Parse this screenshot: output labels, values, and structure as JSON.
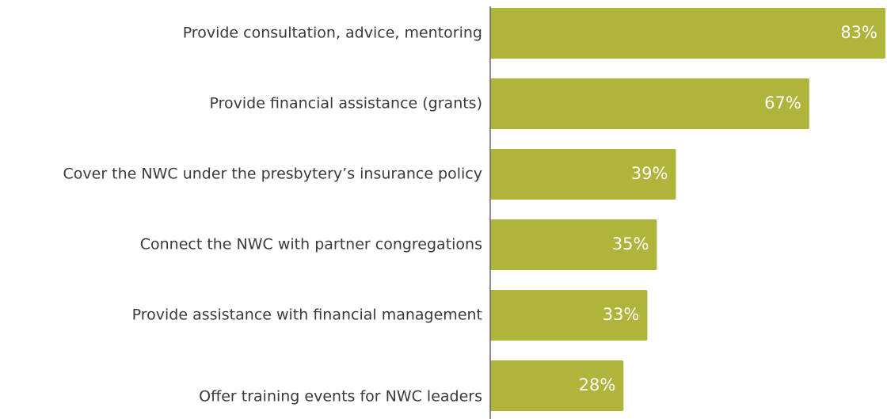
{
  "chart_data": {
    "type": "hbar",
    "categories": [
      "Provide consultation, advice, mentoring",
      "Provide financial assistance (grants)",
      "Cover the NWC under the presbytery’s insurance policy",
      "Connect the NWC with partner congregations",
      "Provide assistance with financial management",
      "Offer training events for NWC leaders"
    ],
    "values": [
      83,
      67,
      39,
      35,
      33,
      28
    ],
    "value_labels": [
      "83%",
      "67%",
      "39%",
      "35%",
      "33%",
      "28%"
    ],
    "color": "#b0b43a",
    "xlim": [
      0,
      83
    ]
  }
}
